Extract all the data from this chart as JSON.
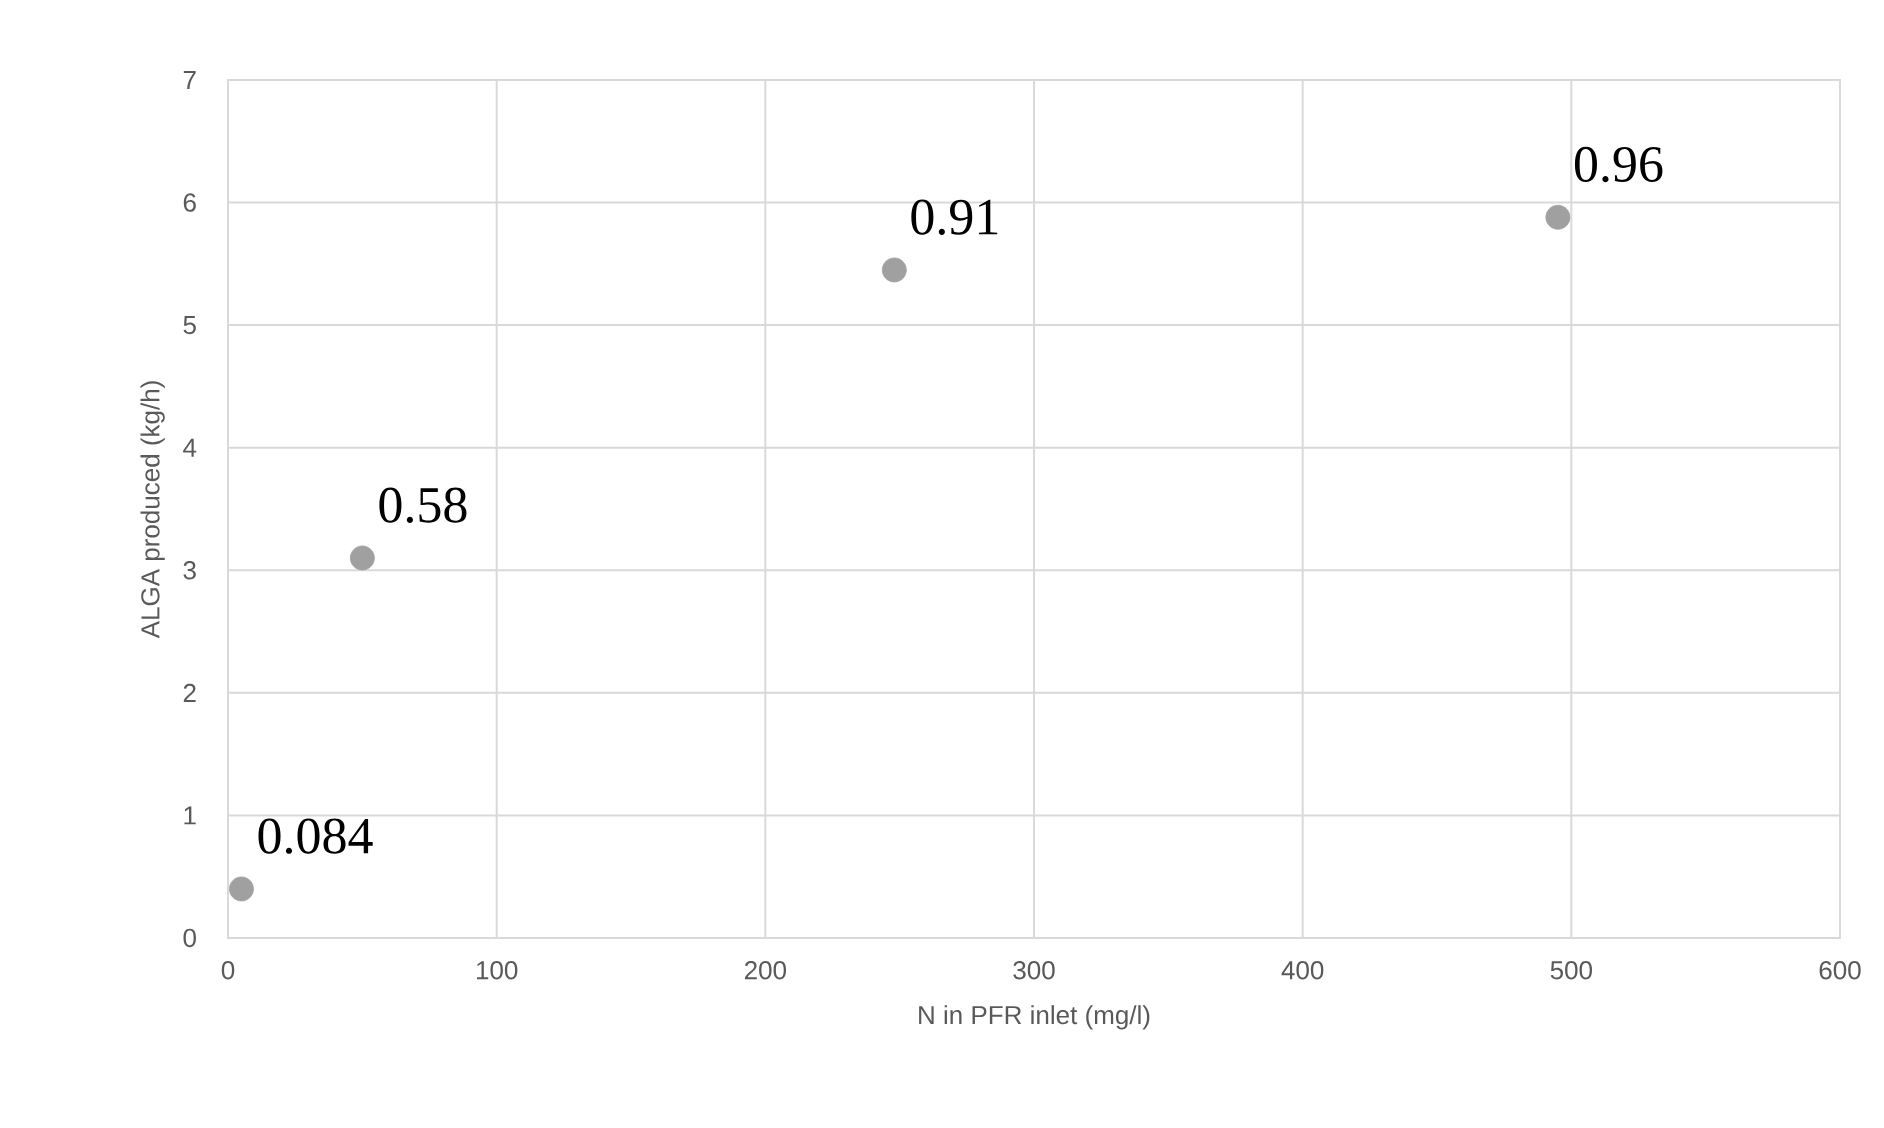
{
  "chart_data": {
    "type": "scatter",
    "xlabel": "N in PFR inlet (mg/l)",
    "ylabel": "ALGA produced (kg/h)",
    "x": [
      5,
      50,
      248,
      495
    ],
    "series": [
      {
        "color": "#a0a0a0",
        "values": [
          0.4,
          3.1,
          5.45,
          5.88
        ]
      }
    ],
    "marker": "circle",
    "grid": true,
    "xlim": [
      0,
      600
    ],
    "xticks": [
      0,
      100,
      200,
      300,
      400,
      500,
      600
    ],
    "ylim": [
      0,
      7
    ],
    "yticks": [
      0,
      1,
      2,
      3,
      4,
      5,
      6,
      7
    ],
    "annotations": [
      {
        "text": "0.084",
        "x": 5,
        "y": 0.4
      },
      {
        "text": "0.58",
        "x": 50,
        "y": 3.1
      },
      {
        "text": "0.91",
        "x": 248,
        "y": 5.45
      },
      {
        "text": "0.96",
        "x": 495,
        "y": 5.88
      }
    ]
  }
}
